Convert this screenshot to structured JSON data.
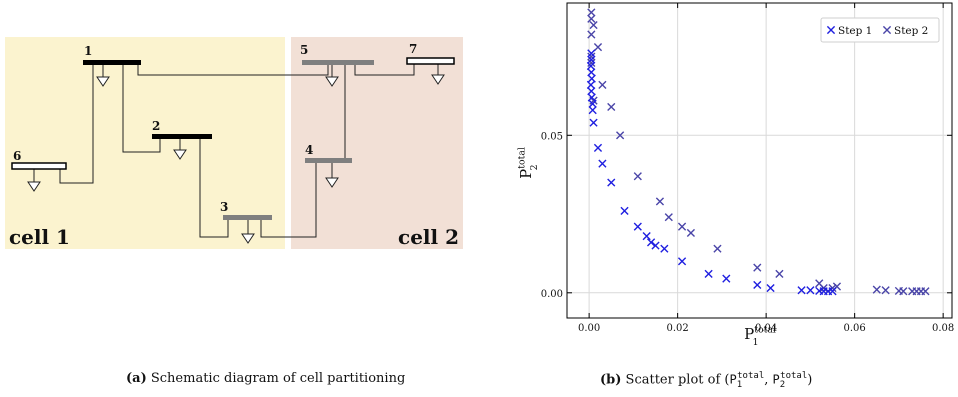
{
  "diagram": {
    "cells": [
      {
        "id": "cell1",
        "label": "cell 1",
        "color": "#fbf3cf"
      },
      {
        "id": "cell2",
        "label": "cell 2",
        "color": "#f2e0d6"
      }
    ],
    "buses": [
      {
        "id": "1",
        "label": "1",
        "style": "black"
      },
      {
        "id": "2",
        "label": "2",
        "style": "black"
      },
      {
        "id": "3",
        "label": "3",
        "style": "gray"
      },
      {
        "id": "4",
        "label": "4",
        "style": "gray"
      },
      {
        "id": "5",
        "label": "5",
        "style": "gray"
      },
      {
        "id": "6",
        "label": "6",
        "style": "outline"
      },
      {
        "id": "7",
        "label": "7",
        "style": "outline"
      }
    ]
  },
  "captions": {
    "a_tag": "(a)",
    "a_text": "Schematic diagram of cell partitioning",
    "b_tag": "(b)",
    "b_text_prefix": "Scatter plot of (",
    "b_p1": "P",
    "b_p1_sub": "1",
    "b_p1_sup": "total",
    "b_sep": ", ",
    "b_p2": "P",
    "b_p2_sub": "2",
    "b_p2_sup": "total",
    "b_suffix": ")"
  },
  "chart_data": {
    "type": "scatter",
    "xlabel": {
      "base": "P",
      "sub": "1",
      "sup": "total"
    },
    "ylabel": {
      "base": "P",
      "sub": "2",
      "sup": "total"
    },
    "xlim": [
      -0.005,
      0.082
    ],
    "ylim": [
      -0.008,
      0.092
    ],
    "xticks": [
      0.0,
      0.02,
      0.04,
      0.06,
      0.08
    ],
    "xtick_labels": [
      "0.00",
      "0.02",
      "0.04",
      "0.06",
      "0.08"
    ],
    "yticks": [
      0.0,
      0.05
    ],
    "ytick_labels": [
      "0.00",
      "0.05"
    ],
    "grid": true,
    "legend_position": "top-right",
    "series": [
      {
        "name": "Step 1",
        "color": "#1f1fe0",
        "marker": "x",
        "points": [
          [
            0.0005,
            0.076
          ],
          [
            0.0005,
            0.074
          ],
          [
            0.0004,
            0.072
          ],
          [
            0.0005,
            0.07
          ],
          [
            0.0006,
            0.068
          ],
          [
            0.0004,
            0.066
          ],
          [
            0.0005,
            0.064
          ],
          [
            0.0006,
            0.062
          ],
          [
            0.0008,
            0.06
          ],
          [
            0.0008,
            0.058
          ],
          [
            0.001,
            0.054
          ],
          [
            0.002,
            0.046
          ],
          [
            0.003,
            0.041
          ],
          [
            0.005,
            0.035
          ],
          [
            0.008,
            0.026
          ],
          [
            0.011,
            0.021
          ],
          [
            0.013,
            0.018
          ],
          [
            0.014,
            0.016
          ],
          [
            0.015,
            0.015
          ],
          [
            0.017,
            0.014
          ],
          [
            0.021,
            0.01
          ],
          [
            0.027,
            0.006
          ],
          [
            0.031,
            0.0045
          ],
          [
            0.038,
            0.0025
          ],
          [
            0.041,
            0.0015
          ],
          [
            0.048,
            0.0008
          ],
          [
            0.05,
            0.0008
          ],
          [
            0.052,
            0.0006
          ],
          [
            0.053,
            0.0005
          ],
          [
            0.054,
            0.0005
          ],
          [
            0.055,
            0.0005
          ]
        ]
      },
      {
        "name": "Step 2",
        "color": "#4a45a8",
        "marker": "x",
        "points": [
          [
            0.0005,
            0.089
          ],
          [
            0.0005,
            0.087
          ],
          [
            0.001,
            0.085
          ],
          [
            0.0005,
            0.082
          ],
          [
            0.002,
            0.078
          ],
          [
            0.0005,
            0.075
          ],
          [
            0.0005,
            0.073
          ],
          [
            0.003,
            0.066
          ],
          [
            0.001,
            0.061
          ],
          [
            0.005,
            0.059
          ],
          [
            0.007,
            0.05
          ],
          [
            0.011,
            0.037
          ],
          [
            0.016,
            0.029
          ],
          [
            0.018,
            0.024
          ],
          [
            0.021,
            0.021
          ],
          [
            0.023,
            0.019
          ],
          [
            0.029,
            0.014
          ],
          [
            0.038,
            0.008
          ],
          [
            0.043,
            0.006
          ],
          [
            0.052,
            0.003
          ],
          [
            0.053,
            0.0015
          ],
          [
            0.055,
            0.0015
          ],
          [
            0.056,
            0.002
          ],
          [
            0.065,
            0.001
          ],
          [
            0.067,
            0.0008
          ],
          [
            0.07,
            0.0006
          ],
          [
            0.071,
            0.0005
          ],
          [
            0.073,
            0.0005
          ],
          [
            0.074,
            0.0005
          ],
          [
            0.075,
            0.0005
          ],
          [
            0.076,
            0.0005
          ]
        ]
      }
    ]
  }
}
